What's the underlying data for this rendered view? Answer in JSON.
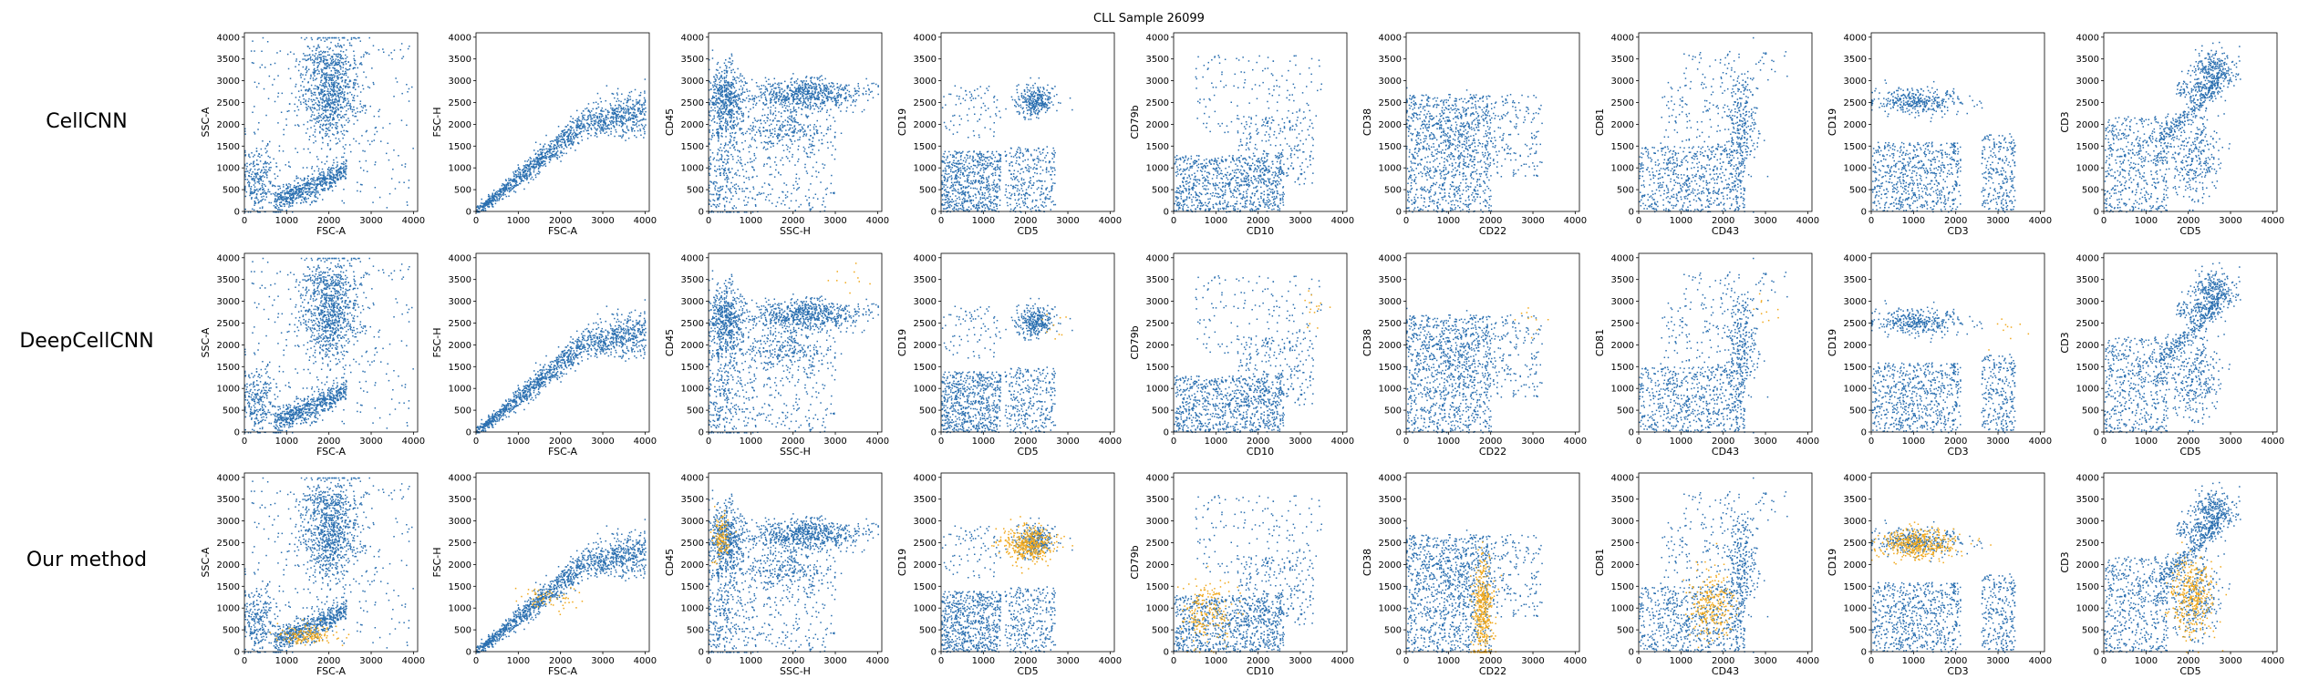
{
  "figure": {
    "title": "CLL Sample 26099",
    "row_labels": [
      "CellCNN",
      "DeepCellCNN",
      "Our method"
    ]
  },
  "colors": {
    "population": "#2a6fb0",
    "selected": "#f0a81c"
  },
  "chart_data": {
    "type": "scatter",
    "title": "CLL Sample 26099",
    "xlim": [
      0,
      4100
    ],
    "ylim": [
      0,
      4100
    ],
    "ticks": [
      0,
      500,
      1000,
      1500,
      2000,
      2500,
      3000,
      3500,
      4000
    ],
    "xticks": [
      0,
      1000,
      2000,
      3000,
      4000
    ],
    "grid": false,
    "rows": [
      "CellCNN",
      "DeepCellCNN",
      "Our method"
    ],
    "panels": [
      {
        "xlabel": "FSC-A",
        "ylabel": "SSC-A",
        "shape": "fsc_ssc",
        "highlight": [
          {
            "count": 0,
            "cx": 0,
            "cy": 0,
            "sx": 0,
            "sy": 0
          },
          {
            "count": 0,
            "cx": 0,
            "cy": 0,
            "sx": 0,
            "sy": 0
          },
          {
            "count": 150,
            "cx": 1500,
            "cy": 400,
            "sx": 350,
            "sy": 120
          }
        ]
      },
      {
        "xlabel": "FSC-A",
        "ylabel": "FSC-H",
        "shape": "fsc_fsch",
        "highlight": [
          {
            "count": 0,
            "cx": 0,
            "cy": 0,
            "sx": 0,
            "sy": 0
          },
          {
            "count": 0,
            "cx": 0,
            "cy": 0,
            "sx": 0,
            "sy": 0
          },
          {
            "count": 60,
            "cx": 1600,
            "cy": 1250,
            "sx": 350,
            "sy": 150
          }
        ]
      },
      {
        "xlabel": "SSC-H",
        "ylabel": "CD45",
        "shape": "ssc_cd45",
        "highlight": [
          {
            "count": 0,
            "cx": 0,
            "cy": 0,
            "sx": 0,
            "sy": 0
          },
          {
            "count": 10,
            "cx": 3300,
            "cy": 3500,
            "sx": 300,
            "sy": 250
          },
          {
            "count": 120,
            "cx": 300,
            "cy": 2650,
            "sx": 100,
            "sy": 250
          }
        ]
      },
      {
        "xlabel": "CD5",
        "ylabel": "CD19",
        "shape": "cd5_cd19",
        "highlight": [
          {
            "count": 0,
            "cx": 0,
            "cy": 0,
            "sx": 0,
            "sy": 0
          },
          {
            "count": 10,
            "cx": 2600,
            "cy": 2400,
            "sx": 150,
            "sy": 250
          },
          {
            "count": 400,
            "cx": 2050,
            "cy": 2500,
            "sx": 300,
            "sy": 200
          }
        ]
      },
      {
        "xlabel": "CD10",
        "ylabel": "CD79b",
        "shape": "cd10_cd79b",
        "highlight": [
          {
            "count": 0,
            "cx": 0,
            "cy": 0,
            "sx": 0,
            "sy": 0
          },
          {
            "count": 15,
            "cx": 3300,
            "cy": 2900,
            "sx": 200,
            "sy": 250
          },
          {
            "count": 200,
            "cx": 800,
            "cy": 900,
            "sx": 300,
            "sy": 350
          }
        ]
      },
      {
        "xlabel": "CD22",
        "ylabel": "CD38",
        "shape": "cd22_cd38",
        "highlight": [
          {
            "count": 0,
            "cx": 0,
            "cy": 0,
            "sx": 0,
            "sy": 0
          },
          {
            "count": 10,
            "cx": 2900,
            "cy": 2600,
            "sx": 200,
            "sy": 250
          },
          {
            "count": 400,
            "cx": 1800,
            "cy": 1000,
            "sx": 120,
            "sy": 550
          }
        ]
      },
      {
        "xlabel": "CD43",
        "ylabel": "CD81",
        "shape": "cd43_cd81",
        "highlight": [
          {
            "count": 0,
            "cx": 0,
            "cy": 0,
            "sx": 0,
            "sy": 0
          },
          {
            "count": 10,
            "cx": 3000,
            "cy": 2800,
            "sx": 200,
            "sy": 250
          },
          {
            "count": 250,
            "cx": 1700,
            "cy": 1100,
            "sx": 250,
            "sy": 400
          }
        ]
      },
      {
        "xlabel": "CD3",
        "ylabel": "CD19",
        "shape": "cd3_cd19",
        "highlight": [
          {
            "count": 0,
            "cx": 0,
            "cy": 0,
            "sx": 0,
            "sy": 0
          },
          {
            "count": 10,
            "cx": 3200,
            "cy": 2300,
            "sx": 250,
            "sy": 250
          },
          {
            "count": 400,
            "cx": 1100,
            "cy": 2500,
            "sx": 450,
            "sy": 180
          }
        ]
      },
      {
        "xlabel": "CD5",
        "ylabel": "CD3",
        "shape": "cd5_cd3",
        "highlight": [
          {
            "count": 0,
            "cx": 0,
            "cy": 0,
            "sx": 0,
            "sy": 0
          },
          {
            "count": 0,
            "cx": 0,
            "cy": 0,
            "sx": 0,
            "sy": 0
          },
          {
            "count": 350,
            "cx": 2100,
            "cy": 1300,
            "sx": 250,
            "sy": 450
          }
        ]
      }
    ]
  }
}
